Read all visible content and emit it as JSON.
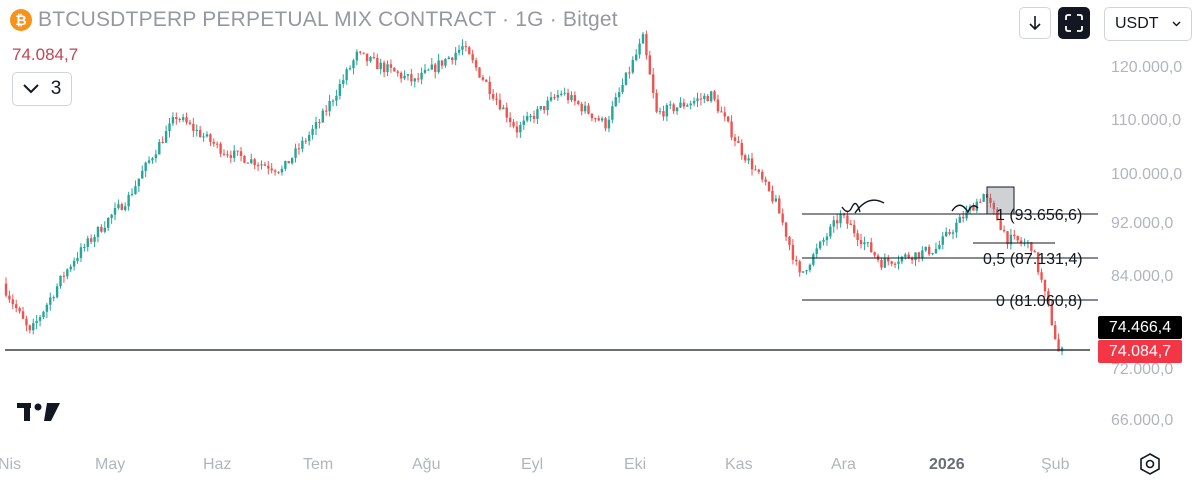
{
  "header": {
    "coin_symbol": "₿",
    "title": "BTCUSDTPERP PERPETUAL MIX CONTRACT · 1G · Bitget",
    "last_price": "74.084,7",
    "indicator_count": "3"
  },
  "controls": {
    "currency": "USDT"
  },
  "colors": {
    "up": "#26a69a",
    "down": "#ef5350",
    "axis_text": "#b2b5be",
    "line": "#131722"
  },
  "price_tags": {
    "current": "74.466,4",
    "last": "74.084,7"
  },
  "chart_data": {
    "type": "candlestick",
    "y_ticks": [
      {
        "value": 120000,
        "label": "120.000,0"
      },
      {
        "value": 110000,
        "label": "110.000,0"
      },
      {
        "value": 100000,
        "label": "100.000,0"
      },
      {
        "value": 92000,
        "label": "92.000,0"
      },
      {
        "value": 84000,
        "label": "84.000,0"
      },
      {
        "value": 72000,
        "label": "72.000,0"
      },
      {
        "value": 66000,
        "label": "66.000,0"
      }
    ],
    "x_labels": [
      "Nis",
      "May",
      "Haz",
      "Tem",
      "Ağu",
      "Eyl",
      "Eki",
      "Kas",
      "Ara",
      "2026",
      "Şub"
    ],
    "x_label_emphasis": "2026",
    "fib_levels": [
      {
        "level": "1",
        "value": "93.656,6",
        "label": "1 (93.656,6)"
      },
      {
        "level": "0.5",
        "value": "87.131,4",
        "label": "0,5 (87.131,4)"
      },
      {
        "level": "0",
        "value": "81.060,8",
        "label": "0 (81.060,8)"
      }
    ],
    "horizontal_line_value": 74466.4,
    "price_path": [
      {
        "date": "2025-04-01",
        "price": 83000
      },
      {
        "date": "2025-04-09",
        "price": 76500
      },
      {
        "date": "2025-04-22",
        "price": 86500
      },
      {
        "date": "2025-05-08",
        "price": 96000
      },
      {
        "date": "2025-05-22",
        "price": 110500
      },
      {
        "date": "2025-06-05",
        "price": 104000
      },
      {
        "date": "2025-06-22",
        "price": 100500
      },
      {
        "date": "2025-07-03",
        "price": 109500
      },
      {
        "date": "2025-07-14",
        "price": 122000
      },
      {
        "date": "2025-07-31",
        "price": 117000
      },
      {
        "date": "2025-08-14",
        "price": 123500
      },
      {
        "date": "2025-08-30",
        "price": 108000
      },
      {
        "date": "2025-09-12",
        "price": 115000
      },
      {
        "date": "2025-09-25",
        "price": 109000
      },
      {
        "date": "2025-10-06",
        "price": 125000
      },
      {
        "date": "2025-10-10",
        "price": 111000
      },
      {
        "date": "2025-10-26",
        "price": 114500
      },
      {
        "date": "2025-11-04",
        "price": 104000
      },
      {
        "date": "2025-11-14",
        "price": 95000
      },
      {
        "date": "2025-11-21",
        "price": 84000
      },
      {
        "date": "2025-12-03",
        "price": 93000
      },
      {
        "date": "2025-12-15",
        "price": 86000
      },
      {
        "date": "2025-12-31",
        "price": 88000
      },
      {
        "date": "2026-01-14",
        "price": 96500
      },
      {
        "date": "2026-01-21",
        "price": 89500
      },
      {
        "date": "2026-01-28",
        "price": 88500
      },
      {
        "date": "2026-02-03",
        "price": 78000
      },
      {
        "date": "2026-02-05",
        "price": 74084.7
      }
    ]
  }
}
